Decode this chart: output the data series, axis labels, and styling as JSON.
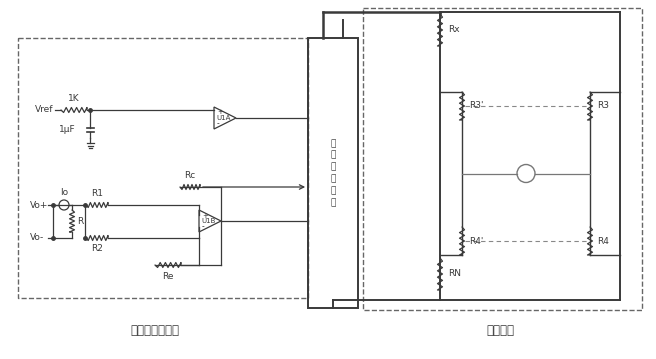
{
  "fig_width": 6.56,
  "fig_height": 3.59,
  "dpi": 100,
  "background_color": "#ffffff",
  "line_color": "#3a3a3a",
  "dash_color": "#555555",
  "title_left": "恒流源控制模块",
  "title_right": "测量电桥",
  "font_size_labels": 6.5,
  "font_size_title": 8.5,
  "central_text": "电\n流\n控\n制\n单\n元"
}
